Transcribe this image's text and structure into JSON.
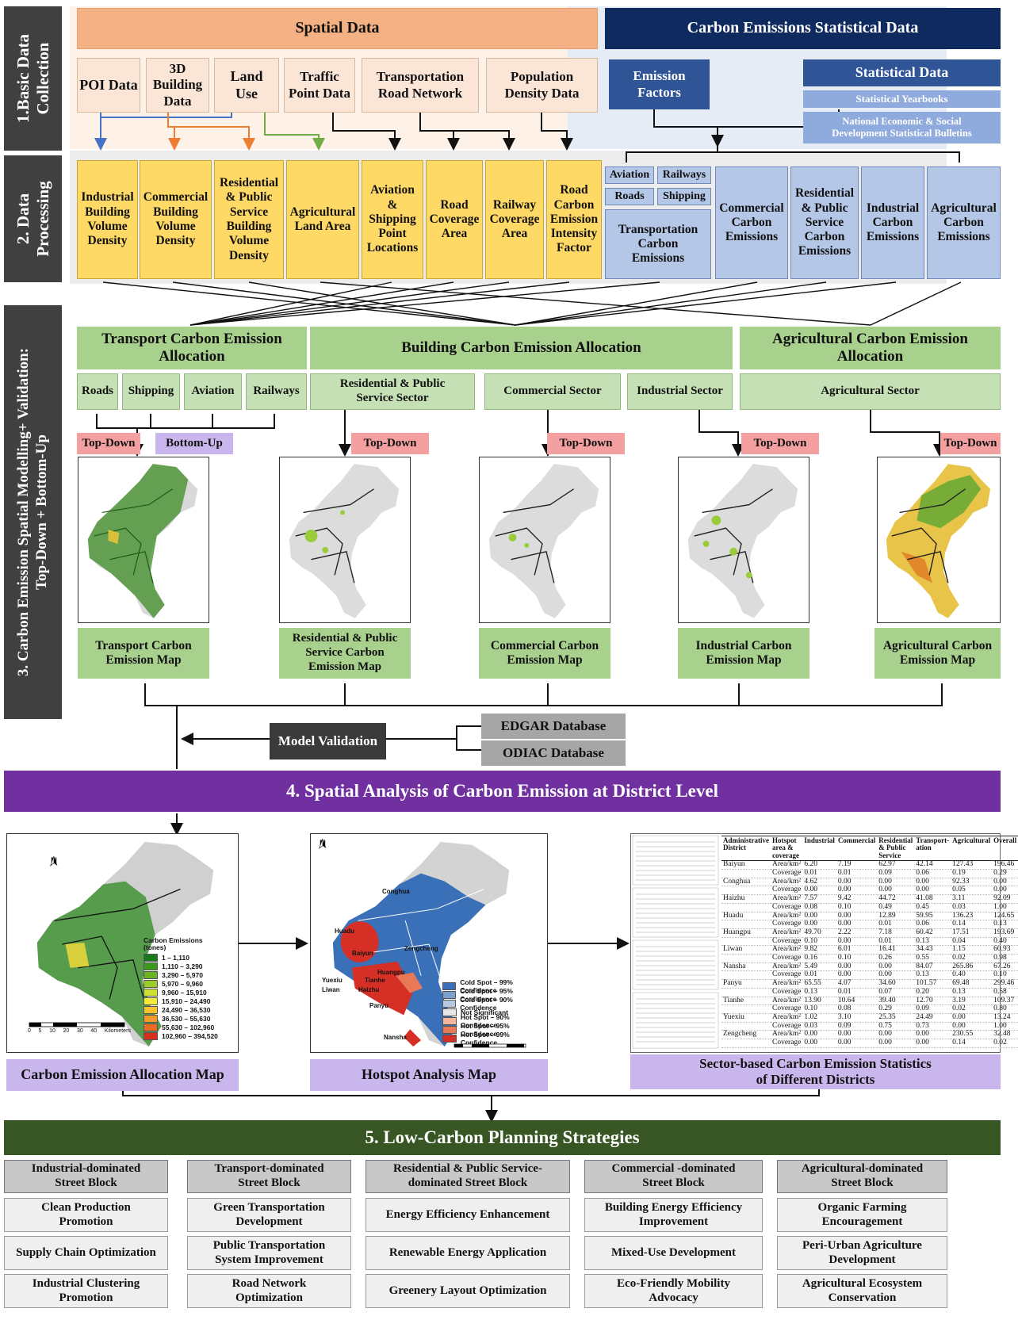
{
  "stages": {
    "s1": "1.Basic Data\nCollection",
    "s2": "2. Data\nProcessing",
    "s3": "3. Carbon Emission Spatial Modelling+ Validation:\nTop-Down + Bottom-Up"
  },
  "basic": {
    "spatial_header": "Spatial Data",
    "carbon_header": "Carbon Emissions Statistical Data",
    "poi": "POI Data",
    "building3d": "3D\nBuilding\nData",
    "landuse": "Land\nUse",
    "traffic": "Traffic\nPoint Data",
    "roadnet": "Transportation\nRoad Network",
    "population": "Population\nDensity Data",
    "emission_factors": "Emission\nFactors",
    "statistical": "Statistical Data",
    "yearbooks": "Statistical Yearbooks",
    "bulletins": "National Economic & Social\nDevelopment Statistical Bulletins"
  },
  "processing": {
    "industrial": "Industrial\nBuilding\nVolume\nDensity",
    "commercial": "Commercial\nBuilding\nVolume\nDensity",
    "residential": "Residential\n& Public\nService\nBuilding\nVolume\nDensity",
    "agricultural": "Agricultural\nLand Area",
    "aviation_shipping": "Aviation\n&\nShipping\nPoint\nLocations",
    "road_coverage": "Road\nCoverage\nArea",
    "railway_coverage": "Railway\nCoverage\nArea",
    "road_intensity": "Road\nCarbon\nEmission\nIntensity\nFactor",
    "aviation": "Aviation",
    "railways": "Railways",
    "roads": "Roads",
    "shipping": "Shipping",
    "transport_emissions": "Transportation\nCarbon\nEmissions",
    "commercial_emissions": "Commercial\nCarbon\nEmissions",
    "residential_emissions": "Residential\n& Public\nService\nCarbon\nEmissions",
    "industrial_emissions": "Industrial\nCarbon\nEmissions",
    "agricultural_emissions": "Agricultural\nCarbon\nEmissions"
  },
  "allocation": {
    "transport_header": "Transport Carbon Emission\nAllocation",
    "building_header": "Building Carbon Emission Allocation",
    "agri_header": "Agricultural Carbon Emission\nAllocation",
    "roads": "Roads",
    "shipping": "Shipping",
    "aviation": "Aviation",
    "railways": "Railways",
    "res_sector": "Residential & Public\nService Sector",
    "com_sector": "Commercial  Sector",
    "ind_sector": "Industrial  Sector",
    "agri_sector": "Agricultural  Sector",
    "top_down": "Top-Down",
    "bottom_up": "Bottom-Up",
    "map_transport": "Transport  Carbon\nEmission  Map",
    "map_residential": "Residential  & Public\nService Carbon\nEmission  Map",
    "map_commercial": "Commercial  Carbon\nEmission  Map",
    "map_industrial": "Industrial  Carbon\nEmission  Map",
    "map_agricultural": "Agricultural  Carbon\nEmission  Map",
    "model_validation": "Model Validation",
    "edgar": "EDGAR Database",
    "odiac": "ODIAC Database"
  },
  "analysis": {
    "header": "4. Spatial Analysis of Carbon Emission at District Level",
    "alloc_map_label": "Carbon Emission Allocation Map",
    "hotspot_label": "Hotspot Analysis Map",
    "stats_label": "Sector-based Carbon Emission Statistics\nof Different Districts",
    "north": "N",
    "legend_title": "Carbon Emissions\n(tones)",
    "legend": [
      "1 – 1,110",
      "1,110 – 3,290",
      "3,290 – 5,970",
      "5,970 – 9,960",
      "9,960 – 15,910",
      "15,910 – 24,490",
      "24,490 – 36,530",
      "36,530 – 55,630",
      "55,630 – 102,960",
      "102,960 – 394,520"
    ],
    "legend_colors": [
      "#1a7a1a",
      "#3b9a1e",
      "#6ab423",
      "#9ccc2a",
      "#cfe233",
      "#f3e93a",
      "#f6c431",
      "#f29a2c",
      "#ea6b25",
      "#d8301e"
    ],
    "hotspot_legend": [
      "Cold Spot – 99% Confidence",
      "Cold Spot – 95% Confidence",
      "Cold Spot – 90% Confidence",
      "Not Significant",
      "Hot Spot – 90% Confidence",
      "Hot Spot – 95% Confidence",
      "Hot Spot – 99% Confidence"
    ],
    "hotspot_colors": [
      "#3a70b8",
      "#7c9fce",
      "#b6c8e0",
      "#e6e6e6",
      "#f3b49a",
      "#e87856",
      "#d63026"
    ],
    "scale_ticks": [
      "0",
      "5",
      "10",
      "20",
      "30",
      "40"
    ],
    "scale_unit": "Kilometers",
    "districts": [
      "Conghua",
      "Huadu",
      "Baiyun",
      "Zengcheng",
      "Huangpu",
      "Yuexiu",
      "Liwan",
      "Tianhe",
      "Haizhu",
      "Panyu",
      "Nansha"
    ],
    "table_headers": [
      "Administrative\nDistrict",
      "Hotspot\narea &\ncoverage",
      "Industrial",
      "Commercial",
      "Residential\n& Public\nService",
      "Transport-\nation",
      "Agricultural",
      "Overall"
    ],
    "table_rows": [
      [
        "Baiyun",
        "Area/km²",
        "6.20",
        "7.19",
        "62.97",
        "42.14",
        "127.43",
        "196.46"
      ],
      [
        "",
        "Coverage",
        "0.01",
        "0.01",
        "0.09",
        "0.06",
        "0.19",
        "0.29"
      ],
      [
        "Conghua",
        "Area/km²",
        "4.62",
        "0.00",
        "0.00",
        "0.00",
        "92.33",
        "0.00"
      ],
      [
        "",
        "Coverage",
        "0.00",
        "0.00",
        "0.00",
        "0.00",
        "0.05",
        "0.00"
      ],
      [
        "Haizhu",
        "Area/km²",
        "7.57",
        "9.42",
        "44.72",
        "41.08",
        "3.11",
        "92.09"
      ],
      [
        "",
        "Coverage",
        "0.08",
        "0.10",
        "0.49",
        "0.45",
        "0.03",
        "1.00"
      ],
      [
        "Huadu",
        "Area/km²",
        "0.00",
        "0.00",
        "12.89",
        "59.95",
        "136.23",
        "124.65"
      ],
      [
        "",
        "Coverage",
        "0.00",
        "0.00",
        "0.01",
        "0.06",
        "0.14",
        "0.13"
      ],
      [
        "Huangpu",
        "Area/km²",
        "49.70",
        "2.22",
        "7.18",
        "60.42",
        "17.51",
        "193.69"
      ],
      [
        "",
        "Coverage",
        "0.10",
        "0.00",
        "0.01",
        "0.13",
        "0.04",
        "0.40"
      ],
      [
        "Liwan",
        "Area/km²",
        "9.82",
        "6.01",
        "16.41",
        "34.43",
        "1.15",
        "60.93"
      ],
      [
        "",
        "Coverage",
        "0.16",
        "0.10",
        "0.26",
        "0.55",
        "0.02",
        "0.98"
      ],
      [
        "Nansha",
        "Area/km²",
        "5.49",
        "0.00",
        "0.00",
        "84.07",
        "265.86",
        "67.26"
      ],
      [
        "",
        "Coverage",
        "0.01",
        "0.00",
        "0.00",
        "0.13",
        "0.40",
        "0.10"
      ],
      [
        "Panyu",
        "Area/km²",
        "65.55",
        "4.07",
        "34.60",
        "101.57",
        "69.48",
        "299.46"
      ],
      [
        "",
        "Coverage",
        "0.13",
        "0.01",
        "0.07",
        "0.20",
        "0.13",
        "0.58"
      ],
      [
        "Tianhe",
        "Area/km²",
        "13.90",
        "10.64",
        "39.40",
        "12.70",
        "3.19",
        "109.37"
      ],
      [
        "",
        "Coverage",
        "0.10",
        "0.08",
        "0.29",
        "0.09",
        "0.02",
        "0.80"
      ],
      [
        "Yuexiu",
        "Area/km²",
        "1.02",
        "3.10",
        "25.35",
        "24.49",
        "0.00",
        "13.24"
      ],
      [
        "",
        "Coverage",
        "0.03",
        "0.09",
        "0.75",
        "0.73",
        "0.00",
        "1.00"
      ],
      [
        "Zengcheng",
        "Area/km²",
        "0.00",
        "0.00",
        "0.00",
        "0.00",
        "230.55",
        "32.48"
      ],
      [
        "",
        "Coverage",
        "0.00",
        "0.00",
        "0.00",
        "0.00",
        "0.14",
        "0.02"
      ]
    ]
  },
  "strategies": {
    "header": "5. Low-Carbon  Planning  Strategies",
    "columns": [
      {
        "title": "Industrial-dominated\nStreet Block",
        "items": [
          "Clean Production\nPromotion",
          "Supply  Chain  Optimization",
          "Industrial Clustering\nPromotion"
        ]
      },
      {
        "title": "Transport-dominated\nStreet Block",
        "items": [
          "Green Transportation\nDevelopment",
          "Public Transportation\nSystem Improvement",
          "Road Network\nOptimization"
        ]
      },
      {
        "title": "Residential  & Public Service-\ndominated  Street Block",
        "items": [
          "Energy Efficiency Enhancement",
          "Renewable Energy Application",
          "Greenery Layout Optimization"
        ]
      },
      {
        "title": "Commercial  -dominated\nStreet Block",
        "items": [
          "Building  Energy Efficiency\nImprovement",
          "Mixed-Use Development",
          "Eco-Friendly  Mobility\nAdvocacy"
        ]
      },
      {
        "title": "Agricultural-dominated\nStreet Block",
        "items": [
          "Organic Farming\nEncouragement",
          "Peri-Urban  Agriculture\nDevelopment",
          "Agricultural Ecosystem\nConservation"
        ]
      }
    ]
  }
}
